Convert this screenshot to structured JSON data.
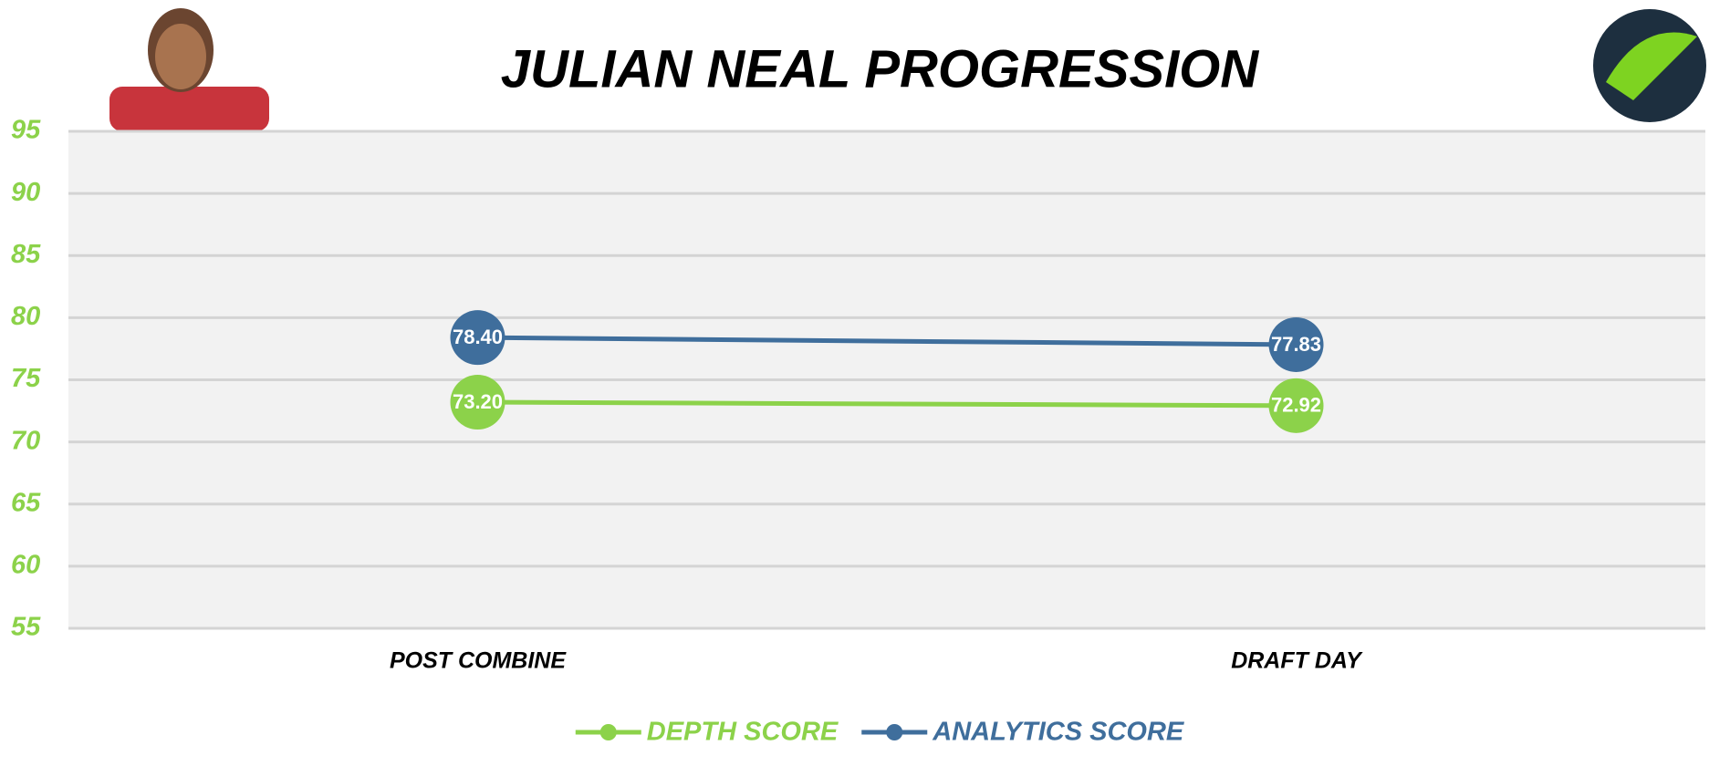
{
  "chart_data": {
    "type": "line",
    "title": "JULIAN NEAL PROGRESSION",
    "categories": [
      "POST COMBINE",
      "DRAFT DAY"
    ],
    "series": [
      {
        "name": "DEPTH SCORE",
        "color": "#8cd24a",
        "values": [
          73.2,
          72.92
        ],
        "value_labels": [
          "73.20",
          "72.92"
        ]
      },
      {
        "name": "ANALYTICS SCORE",
        "color": "#3f6e9c",
        "values": [
          78.4,
          77.83
        ],
        "value_labels": [
          "78.40",
          "77.83"
        ]
      }
    ],
    "ylim": [
      55,
      95
    ],
    "yticks": [
      55,
      60,
      65,
      70,
      75,
      80,
      85,
      90,
      95
    ],
    "grid": true
  }
}
